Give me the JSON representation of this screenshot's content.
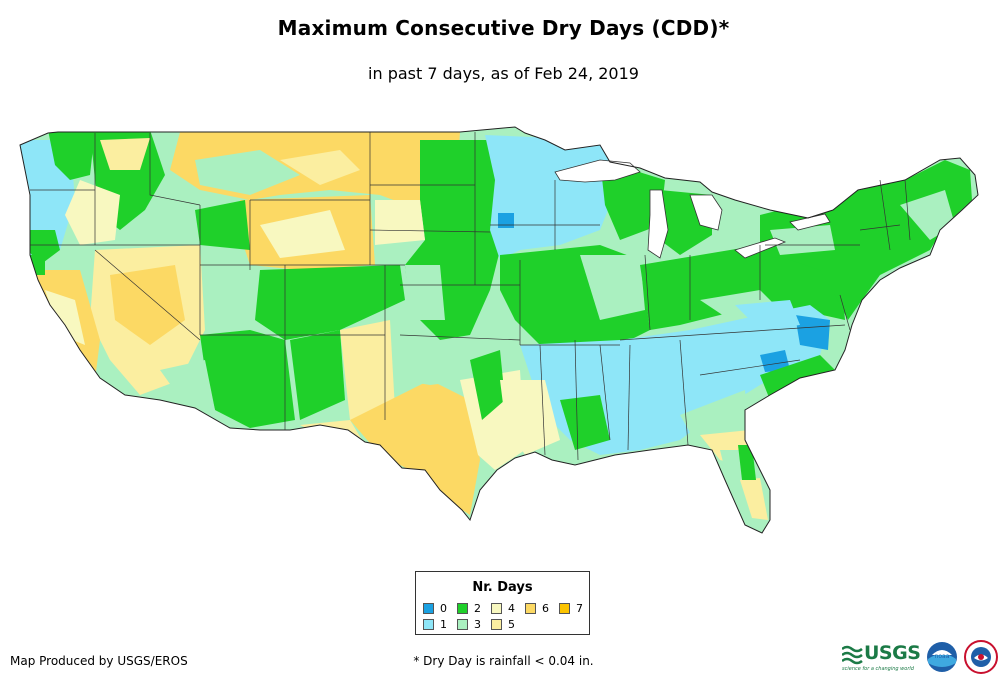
{
  "title": "Maximum Consecutive Dry Days (CDD)*",
  "subtitle": "in past 7 days, as of Feb 24, 2019",
  "legend": {
    "title": "Nr. Days",
    "items": [
      {
        "label": "0",
        "color": "#1ba1e2"
      },
      {
        "label": "1",
        "color": "#8ee6f8"
      },
      {
        "label": "2",
        "color": "#1fd02a"
      },
      {
        "label": "3",
        "color": "#aaf0c0"
      },
      {
        "label": "4",
        "color": "#f8f8c0"
      },
      {
        "label": "5",
        "color": "#fbeea0"
      },
      {
        "label": "6",
        "color": "#fcd964"
      },
      {
        "label": "7",
        "color": "#fcc400"
      }
    ]
  },
  "credit": "Map Produced by USGS/EROS",
  "footnote": "* Dry Day is rainfall < 0.04 in.",
  "logos": {
    "usgs": "USGS",
    "usgs_tagline": "science for a changing world",
    "noaa": "noaa",
    "nws": "nws-logo"
  }
}
